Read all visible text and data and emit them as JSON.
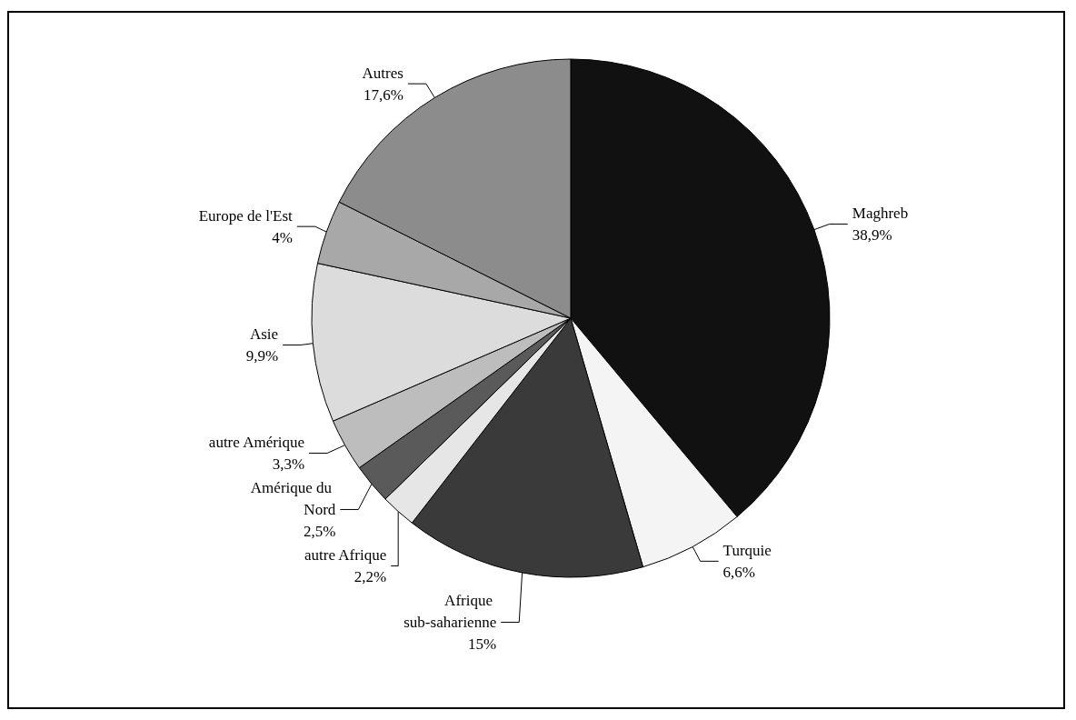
{
  "chart_data": {
    "type": "pie",
    "categories": [
      "Maghreb",
      "Turquie",
      "Afrique sub-saharienne",
      "autre Afrique",
      "Amérique du Nord",
      "autre Amérique",
      "Asie",
      "Europe de l'Est",
      "Autres"
    ],
    "values": [
      38.9,
      6.6,
      15,
      2.2,
      2.5,
      3.3,
      9.9,
      4,
      17.6
    ],
    "value_labels": [
      "38,9%",
      "6,6%",
      "15%",
      "2,2%",
      "2,5%",
      "3,3%",
      "9,9%",
      "4%",
      "17,6%"
    ],
    "colors": [
      "#111111",
      "#f4f4f4",
      "#3a3a3a",
      "#e6e6e6",
      "#5a5a5a",
      "#bdbdbd",
      "#dcdcdc",
      "#a8a8a8",
      "#8c8c8c"
    ],
    "legend": false
  }
}
